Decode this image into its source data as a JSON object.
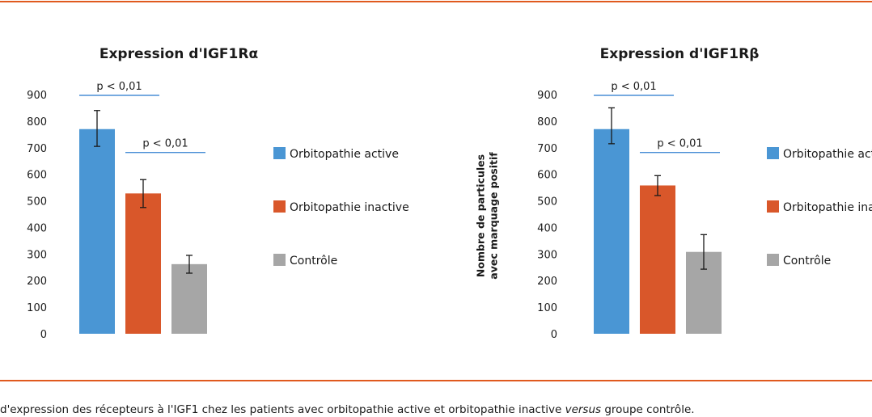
{
  "colors": {
    "rule": "#e05a1e",
    "significance_line": "#4a8fd6",
    "text": "#1a1a1a",
    "error_bar": "#1a1a1a"
  },
  "caption": {
    "part1": "d'expression des récepteurs à l'IGF1 chez les patients avec orbitopathie active et orbitopathie inactive ",
    "emphasis": "versus",
    "part2": " groupe contrôle."
  },
  "chart_data": [
    {
      "type": "bar",
      "title": "Expression d'IGF1Rα",
      "ylabel": "",
      "ylim": [
        0,
        900
      ],
      "yticks": [
        0,
        100,
        200,
        300,
        400,
        500,
        600,
        700,
        800,
        900
      ],
      "grid": false,
      "legend_position": "right",
      "series": [
        {
          "name": "Orbitopathie active",
          "color": "#4a96d4",
          "value": 770,
          "error": [
            705,
            840
          ]
        },
        {
          "name": "Orbitopathie inactive",
          "color": "#d9572a",
          "value": 528,
          "error": [
            475,
            580
          ]
        },
        {
          "name": "Contrôle",
          "color": "#a6a6a6",
          "value": 262,
          "error": [
            228,
            295
          ]
        }
      ],
      "annotations": [
        {
          "text": "p < 0,01",
          "from_series": 0,
          "to_series": 1,
          "level": 900
        },
        {
          "text": "p < 0,01",
          "from_series": 1,
          "to_series": 2,
          "level": 685
        }
      ]
    },
    {
      "type": "bar",
      "title": "Expression d'IGF1Rβ",
      "ylabel": "Nombre de particules\navec marquage positif",
      "ylim": [
        0,
        900
      ],
      "yticks": [
        0,
        100,
        200,
        300,
        400,
        500,
        600,
        700,
        800,
        900
      ],
      "grid": false,
      "legend_position": "right",
      "series": [
        {
          "name": "Orbitopathie active",
          "color": "#4a96d4",
          "value": 770,
          "error": [
            715,
            850
          ]
        },
        {
          "name": "Orbitopathie inactive",
          "color": "#d9572a",
          "value": 558,
          "error": [
            520,
            595
          ]
        },
        {
          "name": "Contrôle",
          "color": "#a6a6a6",
          "value": 308,
          "error": [
            243,
            373
          ]
        }
      ],
      "annotations": [
        {
          "text": "p < 0,01",
          "from_series": 0,
          "to_series": 1,
          "level": 900
        },
        {
          "text": "p < 0,01",
          "from_series": 1,
          "to_series": 2,
          "level": 685
        }
      ]
    }
  ]
}
